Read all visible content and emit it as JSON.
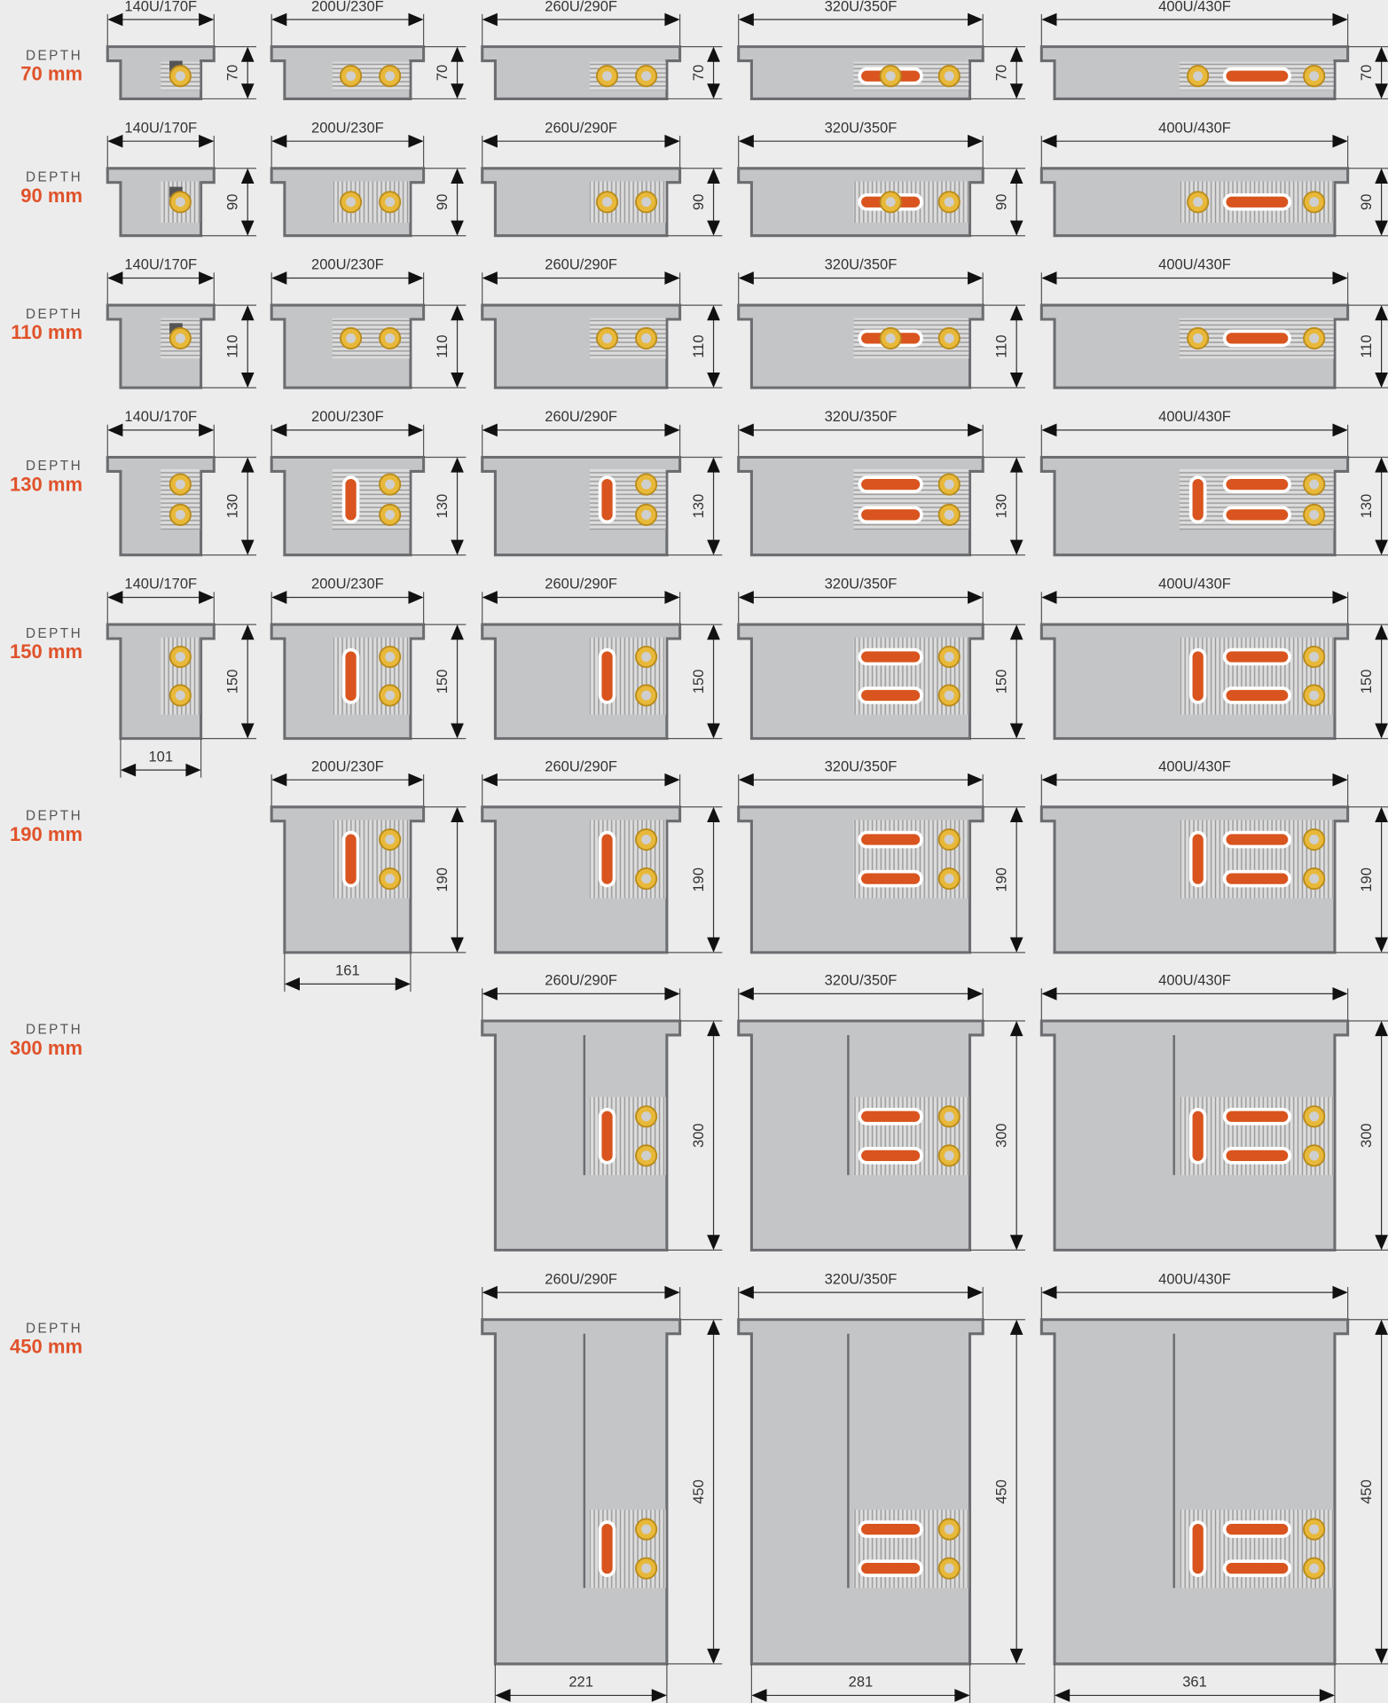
{
  "colors": {
    "background": "#ececec",
    "depth_accent": "#e0522a",
    "housing_fill": "#c4c5c6",
    "housing_stroke": "#6b6d70",
    "pipe": "#d9541e",
    "fitting": "#e8b83a",
    "dimension_line": "#111111"
  },
  "rows": [
    {
      "caption": "DEPTH",
      "depth": "70 mm",
      "units": [
        {
          "model": "140U/170F",
          "height": "70",
          "fittings": "valve"
        },
        {
          "model": "200U/230F",
          "height": "70"
        },
        {
          "model": "260U/290F",
          "height": "70"
        },
        {
          "model": "320U/350F",
          "height": "70"
        },
        {
          "model": "400U/430F",
          "height": "70"
        }
      ]
    },
    {
      "caption": "DEPTH",
      "depth": "90 mm",
      "units": [
        {
          "model": "140U/170F",
          "height": "90",
          "fittings": "valve"
        },
        {
          "model": "200U/230F",
          "height": "90"
        },
        {
          "model": "260U/290F",
          "height": "90"
        },
        {
          "model": "320U/350F",
          "height": "90"
        },
        {
          "model": "400U/430F",
          "height": "90"
        }
      ]
    },
    {
      "caption": "DEPTH",
      "depth": "110 mm",
      "units": [
        {
          "model": "140U/170F",
          "height": "110",
          "fittings": "valve"
        },
        {
          "model": "200U/230F",
          "height": "110"
        },
        {
          "model": "260U/290F",
          "height": "110"
        },
        {
          "model": "320U/350F",
          "height": "110"
        },
        {
          "model": "400U/430F",
          "height": "110"
        }
      ]
    },
    {
      "caption": "DEPTH",
      "depth": "130 mm",
      "units": [
        {
          "model": "140U/170F",
          "height": "130"
        },
        {
          "model": "200U/230F",
          "height": "130"
        },
        {
          "model": "260U/290F",
          "height": "130"
        },
        {
          "model": "320U/350F",
          "height": "130"
        },
        {
          "model": "400U/430F",
          "height": "130"
        }
      ]
    },
    {
      "caption": "DEPTH",
      "depth": "150 mm",
      "units": [
        {
          "model": "140U/170F",
          "height": "150",
          "width": "101"
        },
        {
          "model": "200U/230F",
          "height": "150"
        },
        {
          "model": "260U/290F",
          "height": "150"
        },
        {
          "model": "320U/350F",
          "height": "150"
        },
        {
          "model": "400U/430F",
          "height": "150"
        }
      ]
    },
    {
      "caption": "DEPTH",
      "depth": "190 mm",
      "units": [
        {
          "model": "200U/230F",
          "height": "190",
          "width": "161"
        },
        {
          "model": "260U/290F",
          "height": "190"
        },
        {
          "model": "320U/350F",
          "height": "190"
        },
        {
          "model": "400U/430F",
          "height": "190"
        }
      ]
    },
    {
      "caption": "DEPTH",
      "depth": "300 mm",
      "units": [
        {
          "model": "260U/290F",
          "height": "300"
        },
        {
          "model": "320U/350F",
          "height": "300"
        },
        {
          "model": "400U/430F",
          "height": "300"
        }
      ]
    },
    {
      "caption": "DEPTH",
      "depth": "450 mm",
      "units": [
        {
          "model": "260U/290F",
          "height": "450",
          "width": "221"
        },
        {
          "model": "320U/350F",
          "height": "450",
          "width": "281"
        },
        {
          "model": "400U/430F",
          "height": "450",
          "width": "361"
        }
      ]
    }
  ]
}
